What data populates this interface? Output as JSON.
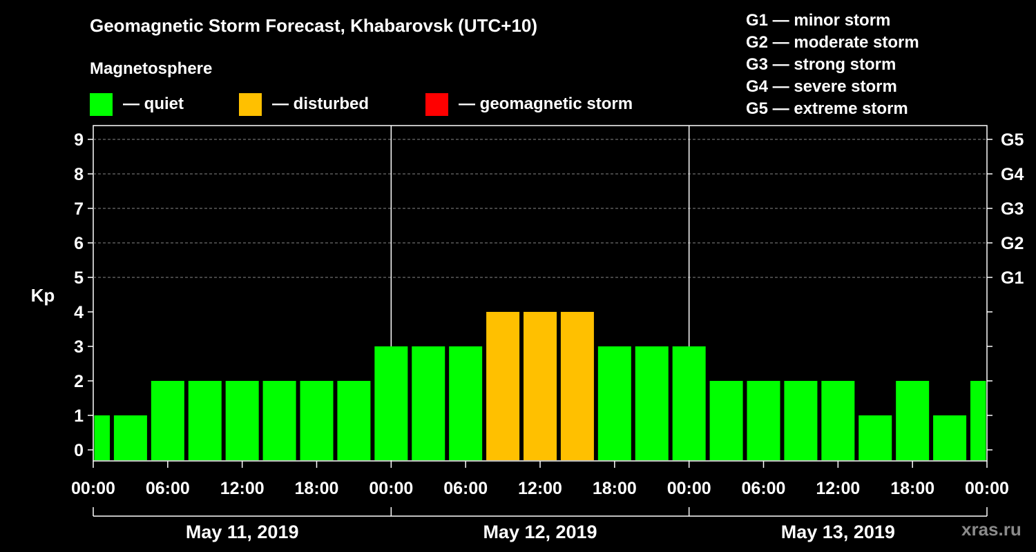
{
  "title": "Geomagnetic Storm Forecast, Khabarovsk (UTC+10)",
  "subtitle": "Magnetosphere",
  "legend": [
    {
      "label": "— quiet",
      "color": "#00ff00"
    },
    {
      "label": "— disturbed",
      "color": "#ffc000"
    },
    {
      "label": "— geomagnetic storm",
      "color": "#ff0000"
    }
  ],
  "g_scale": [
    "G1 — minor storm",
    "G2 — moderate storm",
    "G3 — strong storm",
    "G4 — severe storm",
    "G5 — extreme storm"
  ],
  "watermark": "xras.ru",
  "chart_data": {
    "type": "bar",
    "ylabel": "Kp",
    "ylim": [
      0,
      9
    ],
    "yticks": [
      0,
      1,
      2,
      3,
      4,
      5,
      6,
      7,
      8,
      9
    ],
    "right_ticks": [
      {
        "value": 5,
        "label": "G1"
      },
      {
        "value": 6,
        "label": "G2"
      },
      {
        "value": 7,
        "label": "G3"
      },
      {
        "value": 8,
        "label": "G4"
      },
      {
        "value": 9,
        "label": "G5"
      }
    ],
    "grid": "dashed horizontal at Kp 5-9",
    "xticks": [
      "00:00",
      "06:00",
      "12:00",
      "18:00",
      "00:00",
      "06:00",
      "12:00",
      "18:00",
      "00:00",
      "06:00",
      "12:00",
      "18:00",
      "00:00"
    ],
    "days": [
      "May 11, 2019",
      "May 12, 2019",
      "May 13, 2019"
    ],
    "interval_hours": 3,
    "series": [
      {
        "values": [
          1,
          1,
          2,
          2,
          2,
          2,
          2,
          2,
          3,
          3,
          3,
          4,
          4,
          4,
          3,
          3,
          3,
          2,
          2,
          2,
          2,
          1,
          2,
          1,
          2
        ],
        "colors": [
          "#00ff00",
          "#00ff00",
          "#00ff00",
          "#00ff00",
          "#00ff00",
          "#00ff00",
          "#00ff00",
          "#00ff00",
          "#00ff00",
          "#00ff00",
          "#00ff00",
          "#ffc000",
          "#ffc000",
          "#ffc000",
          "#00ff00",
          "#00ff00",
          "#00ff00",
          "#00ff00",
          "#00ff00",
          "#00ff00",
          "#00ff00",
          "#00ff00",
          "#00ff00",
          "#00ff00",
          "#00ff00"
        ]
      }
    ]
  }
}
